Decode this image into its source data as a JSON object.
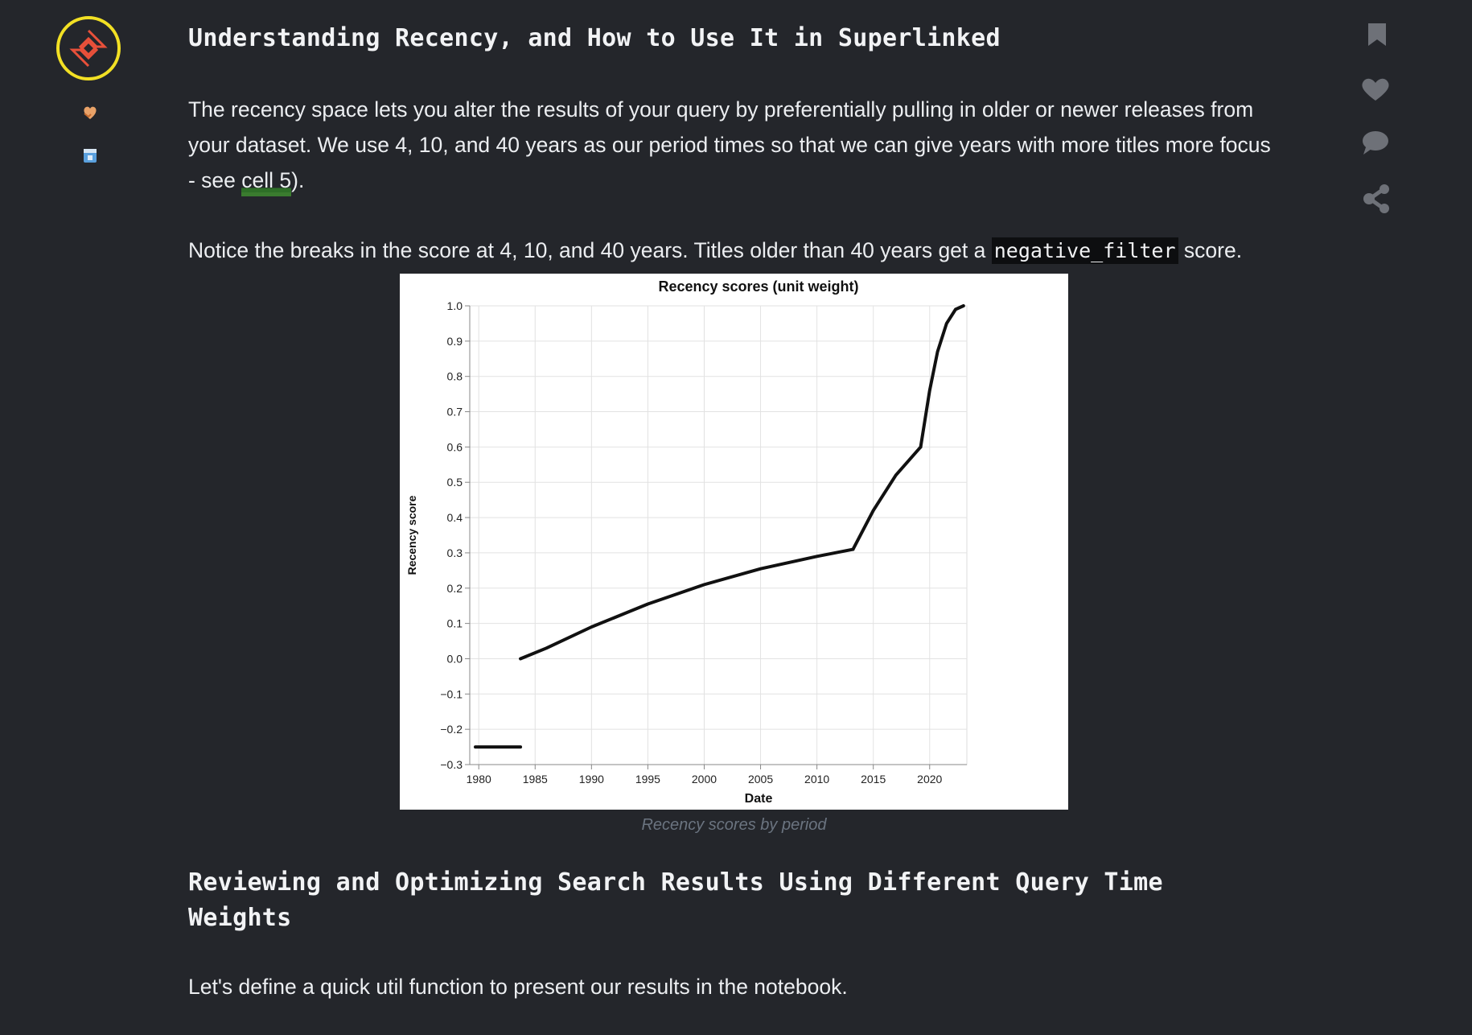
{
  "sidebar_left": {
    "logo_icon": "superlinked-logo-icon",
    "items": [
      {
        "icon": "heart-hands-icon"
      },
      {
        "icon": "calendar-icon"
      }
    ]
  },
  "sidebar_right": {
    "actions": [
      {
        "name": "bookmark",
        "icon": "bookmark-icon"
      },
      {
        "name": "like",
        "icon": "heart-icon"
      },
      {
        "name": "comment",
        "icon": "comment-icon"
      },
      {
        "name": "share",
        "icon": "share-icon"
      }
    ]
  },
  "article": {
    "section1_title": "Understanding Recency, and How to Use It in Superlinked",
    "para1_part1": "The recency space lets you alter the results of your query by preferentially pulling in older or newer releases from your dataset. We use 4, 10, and 40 years as our period times so that we can give years with more titles more focus - see ",
    "para1_link": "cell 5",
    "para1_part2": ").",
    "para2_part1": "Notice the breaks in the score at 4, 10, and 40 years. Titles older than 40 years get a ",
    "para2_code": "negative_filter",
    "para2_part2": " score.",
    "figure_caption": "Recency scores by period",
    "section2_title": "Reviewing and Optimizing Search Results Using Different Query Time Weights",
    "para3": "Let's define a quick util function to present our results in the notebook."
  },
  "chart_data": {
    "type": "line",
    "title": "Recency scores (unit weight)",
    "xlabel": "Date",
    "ylabel": "Recency score",
    "x_ticks": [
      "1980",
      "1985",
      "1990",
      "1995",
      "2000",
      "2005",
      "2010",
      "2015",
      "2020"
    ],
    "y_ticks": [
      "1.0",
      "0.9",
      "0.8",
      "0.7",
      "0.6",
      "0.5",
      "0.4",
      "0.3",
      "0.2",
      "0.1",
      "0.0",
      "−0.1",
      "−0.2",
      "−0.3"
    ],
    "xlim": [
      1979.2,
      2023.3
    ],
    "ylim": [
      -0.3,
      1.0
    ],
    "grid": true,
    "series": [
      {
        "x": [
          1979.7,
          1983.7
        ],
        "y": [
          -0.25,
          -0.25
        ]
      },
      {
        "x": [
          1983.7,
          1986,
          1990,
          1995,
          2000,
          2005,
          2010,
          2013.2
        ],
        "y": [
          0.0,
          0.03,
          0.09,
          0.155,
          0.21,
          0.255,
          0.29,
          0.31
        ]
      },
      {
        "x": [
          2013.2,
          2015,
          2017,
          2019.2
        ],
        "y": [
          0.31,
          0.42,
          0.52,
          0.6
        ]
      },
      {
        "x": [
          2019.2,
          2020,
          2020.7,
          2021.5,
          2022.3,
          2023.0
        ],
        "y": [
          0.6,
          0.76,
          0.87,
          0.95,
          0.99,
          1.0
        ]
      }
    ]
  }
}
